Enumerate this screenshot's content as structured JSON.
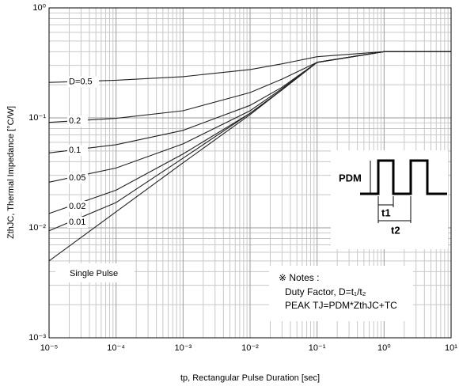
{
  "chart_data": {
    "type": "line",
    "xlabel": "tp, Rectangular Pulse Duration [sec]",
    "ylabel": "ZthJC, Thermal Impedance [°C/W]",
    "log_x": true,
    "log_y": true,
    "grid": true,
    "minor_grid": true,
    "xlim": [
      1e-05,
      10
    ],
    "ylim": [
      0.001,
      1
    ],
    "xticks": [
      {
        "value": 1e-05,
        "label": "10⁻⁵"
      },
      {
        "value": 0.0001,
        "label": "10⁻⁴"
      },
      {
        "value": 0.001,
        "label": "10⁻³"
      },
      {
        "value": 0.01,
        "label": "10⁻²"
      },
      {
        "value": 0.1,
        "label": "10⁻¹"
      },
      {
        "value": 1,
        "label": "10⁰"
      },
      {
        "value": 10,
        "label": "10¹"
      }
    ],
    "yticks": [
      {
        "value": 0.001,
        "label": "10⁻³"
      },
      {
        "value": 0.01,
        "label": "10⁻²"
      },
      {
        "value": 0.1,
        "label": "10⁻¹"
      },
      {
        "value": 1,
        "label": "10⁰"
      }
    ],
    "x": [
      1e-05,
      0.0001,
      0.001,
      0.01,
      0.03,
      0.1,
      1,
      10
    ],
    "series": [
      {
        "name": "D=0.5",
        "color": "#222222",
        "values": [
          0.21,
          0.22,
          0.237,
          0.275,
          0.31,
          0.36,
          0.4,
          0.4
        ]
      },
      {
        "name": "0.2",
        "color": "#222222",
        "values": [
          0.091,
          0.099,
          0.116,
          0.17,
          0.225,
          0.32,
          0.4,
          0.4
        ]
      },
      {
        "name": "0.1",
        "color": "#222222",
        "values": [
          0.048,
          0.057,
          0.077,
          0.13,
          0.19,
          0.32,
          0.4,
          0.4
        ]
      },
      {
        "name": "0.05",
        "color": "#222222",
        "values": [
          0.026,
          0.035,
          0.058,
          0.116,
          0.185,
          0.32,
          0.4,
          0.4
        ]
      },
      {
        "name": "0.02",
        "color": "#222222",
        "values": [
          0.0135,
          0.022,
          0.047,
          0.11,
          0.18,
          0.32,
          0.4,
          0.4
        ]
      },
      {
        "name": "0.01",
        "color": "#222222",
        "values": [
          0.0094,
          0.017,
          0.043,
          0.11,
          0.18,
          0.32,
          0.4,
          0.4
        ]
      },
      {
        "name": "Single Pulse",
        "color": "#222222",
        "values": [
          0.005,
          0.014,
          0.039,
          0.107,
          0.18,
          0.32,
          0.4,
          0.4
        ]
      }
    ],
    "notes": [
      "※ Notes :",
      "Duty Factor, D=t₁/t₂",
      "PEAK TJ=PDM*ZthJC+TC"
    ],
    "pulse_labels": [
      "PDM",
      "t1",
      "t2"
    ]
  }
}
